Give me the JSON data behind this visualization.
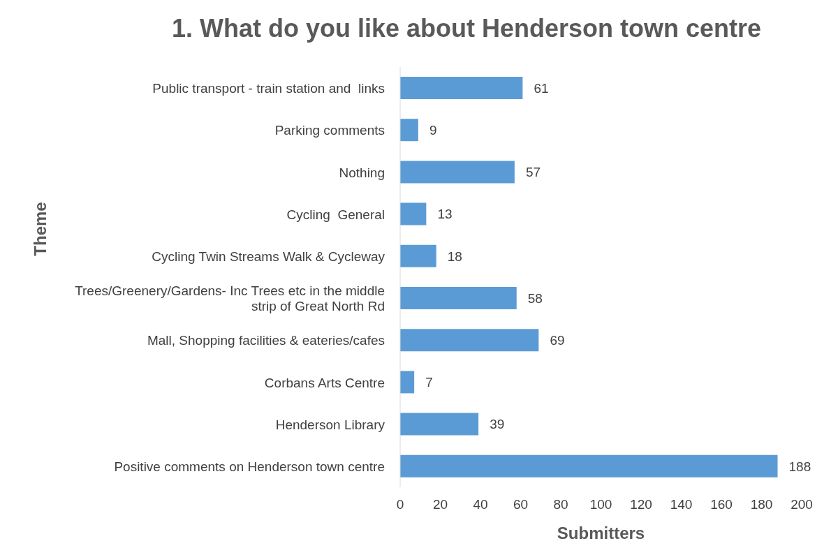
{
  "chart_data": {
    "type": "bar",
    "orientation": "horizontal",
    "title": "1. What do you like about Henderson town centre",
    "xlabel": "Submitters",
    "ylabel": "Theme",
    "categories": [
      "Public transport - train station and  links",
      "Parking comments",
      "Nothing",
      "Cycling  General",
      "Cycling Twin Streams Walk & Cycleway",
      "Trees/Greenery/Gardens- Inc Trees etc in the middle strip of Great North Rd",
      "Mall, Shopping facilities & eateries/cafes",
      "Corbans Arts Centre",
      "Henderson Library",
      "Positive comments on Henderson town centre"
    ],
    "values": [
      61,
      9,
      57,
      13,
      18,
      58,
      69,
      7,
      39,
      188
    ],
    "color": "#5b9bd5",
    "xlim": [
      0,
      200
    ],
    "xticks": [
      0,
      20,
      40,
      60,
      80,
      100,
      120,
      140,
      160,
      180,
      200
    ],
    "grid": false,
    "legend": false,
    "data_labels": true
  }
}
